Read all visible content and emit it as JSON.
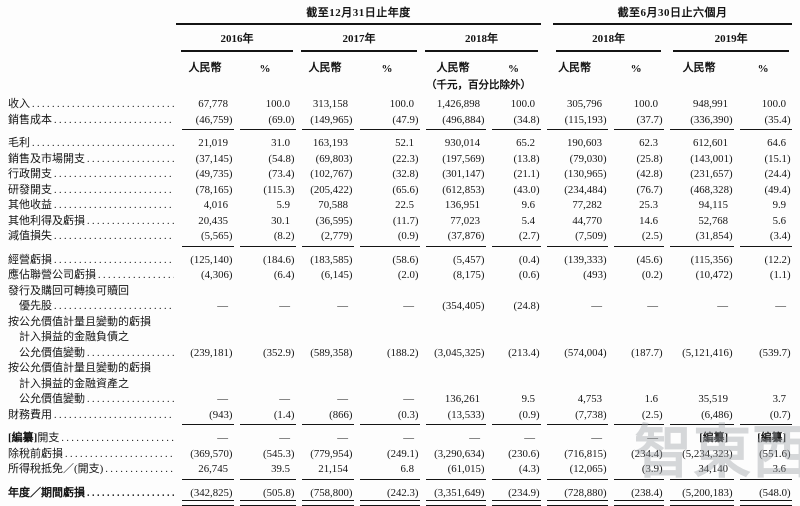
{
  "table": {
    "groups": [
      {
        "title": "截至12月31日止年度"
      },
      {
        "title": "截至6月30日止六個月"
      }
    ],
    "year_headers": [
      "2016年",
      "2017年",
      "2018年",
      "2018年",
      "2019年"
    ],
    "currency_header": "人民幣",
    "percent_header": "%",
    "unit_note": "（千元，百分比除外）",
    "rows": [
      {
        "label_lines": [
          "收入"
        ],
        "cells": [
          "67,778",
          "100.0",
          "313,158",
          "100.0",
          "1,426,898",
          "100.0",
          "305,796",
          "100.0",
          "948,991",
          "100.0"
        ],
        "underline": null,
        "space_before": false,
        "bold": false
      },
      {
        "label_lines": [
          "銷售成本"
        ],
        "cells": [
          "(46,759)",
          "(69.0)",
          "(149,965)",
          "(47.9)",
          "(496,884)",
          "(34.8)",
          "(115,193)",
          "(37.7)",
          "(336,390)",
          "(35.4)"
        ],
        "underline": "single",
        "space_before": false,
        "bold": false
      },
      {
        "label_lines": [
          "毛利"
        ],
        "cells": [
          "21,019",
          "31.0",
          "163,193",
          "52.1",
          "930,014",
          "65.2",
          "190,603",
          "62.3",
          "612,601",
          "64.6"
        ],
        "underline": null,
        "space_before": true,
        "bold": false
      },
      {
        "label_lines": [
          "銷售及市場開支"
        ],
        "cells": [
          "(37,145)",
          "(54.8)",
          "(69,803)",
          "(22.3)",
          "(197,569)",
          "(13.8)",
          "(79,030)",
          "(25.8)",
          "(143,001)",
          "(15.1)"
        ],
        "underline": null,
        "space_before": false,
        "bold": false
      },
      {
        "label_lines": [
          "行政開支"
        ],
        "cells": [
          "(49,735)",
          "(73.4)",
          "(102,767)",
          "(32.8)",
          "(301,147)",
          "(21.1)",
          "(130,965)",
          "(42.8)",
          "(231,657)",
          "(24.4)"
        ],
        "underline": null,
        "space_before": false,
        "bold": false
      },
      {
        "label_lines": [
          "研發開支"
        ],
        "cells": [
          "(78,165)",
          "(115.3)",
          "(205,422)",
          "(65.6)",
          "(612,853)",
          "(43.0)",
          "(234,484)",
          "(76.7)",
          "(468,328)",
          "(49.4)"
        ],
        "underline": null,
        "space_before": false,
        "bold": false
      },
      {
        "label_lines": [
          "其他收益"
        ],
        "cells": [
          "4,016",
          "5.9",
          "70,588",
          "22.5",
          "136,951",
          "9.6",
          "77,282",
          "25.3",
          "94,115",
          "9.9"
        ],
        "underline": null,
        "space_before": false,
        "bold": false
      },
      {
        "label_lines": [
          "其他利得及虧損"
        ],
        "cells": [
          "20,435",
          "30.1",
          "(36,595)",
          "(11.7)",
          "77,023",
          "5.4",
          "44,770",
          "14.6",
          "52,768",
          "5.6"
        ],
        "underline": null,
        "space_before": false,
        "bold": false
      },
      {
        "label_lines": [
          "減值損失"
        ],
        "cells": [
          "(5,565)",
          "(8.2)",
          "(2,779)",
          "(0.9)",
          "(37,876)",
          "(2.7)",
          "(7,509)",
          "(2.5)",
          "(31,854)",
          "(3.4)"
        ],
        "underline": "single",
        "space_before": false,
        "bold": false
      },
      {
        "label_lines": [
          "經營虧損"
        ],
        "cells": [
          "(125,140)",
          "(184.6)",
          "(183,585)",
          "(58.6)",
          "(5,457)",
          "(0.4)",
          "(139,333)",
          "(45.6)",
          "(115,356)",
          "(12.2)"
        ],
        "underline": null,
        "space_before": true,
        "bold": false
      },
      {
        "label_lines": [
          "應佔聯營公司虧損"
        ],
        "cells": [
          "(4,306)",
          "(6.4)",
          "(6,145)",
          "(2.0)",
          "(8,175)",
          "(0.6)",
          "(493)",
          "(0.2)",
          "(10,472)",
          "(1.1)"
        ],
        "underline": null,
        "space_before": false,
        "bold": false
      },
      {
        "label_lines": [
          "發行及購回可轉換可贖回",
          "優先股"
        ],
        "cells": [
          "—",
          "—",
          "—",
          "—",
          "(354,405)",
          "(24.8)",
          "—",
          "—",
          "—",
          "—"
        ],
        "underline": null,
        "space_before": false,
        "bold": false
      },
      {
        "label_lines": [
          "按公允價值計量且變動的虧損",
          "計入損益的金融負債之",
          "公允價值變動"
        ],
        "cells": [
          "(239,181)",
          "(352.9)",
          "(589,358)",
          "(188.2)",
          "(3,045,325)",
          "(213.4)",
          "(574,004)",
          "(187.7)",
          "(5,121,416)",
          "(539.7)"
        ],
        "underline": null,
        "space_before": false,
        "bold": false
      },
      {
        "label_lines": [
          "按公允價值計量且變動的虧損",
          "計入損益的金融資產之",
          "公允價值變動"
        ],
        "cells": [
          "—",
          "—",
          "—",
          "—",
          "136,261",
          "9.5",
          "4,753",
          "1.6",
          "35,519",
          "3.7"
        ],
        "underline": null,
        "space_before": false,
        "bold": false
      },
      {
        "label_lines": [
          "財務費用"
        ],
        "cells": [
          "(943)",
          "(1.4)",
          "(866)",
          "(0.3)",
          "(13,533)",
          "(0.9)",
          "(7,738)",
          "(2.5)",
          "(6,486)",
          "(0.7)"
        ],
        "underline": "single",
        "space_before": false,
        "bold": false
      },
      {
        "label_lines": [
          "[編纂]開支"
        ],
        "cells": [
          "—",
          "—",
          "—",
          "—",
          "—",
          "—",
          "—",
          "—",
          "[編纂]",
          "[編纂]"
        ],
        "underline": null,
        "space_before": true,
        "bold": false
      },
      {
        "label_lines": [
          "除稅前虧損"
        ],
        "cells": [
          "(369,570)",
          "(545.3)",
          "(779,954)",
          "(249.1)",
          "(3,290,634)",
          "(230.6)",
          "(716,815)",
          "(234.4)",
          "(5,234,323)",
          "(551.6)"
        ],
        "underline": null,
        "space_before": false,
        "bold": false
      },
      {
        "label_lines": [
          "所得稅抵免／(開支)"
        ],
        "cells": [
          "26,745",
          "39.5",
          "21,154",
          "6.8",
          "(61,015)",
          "(4.3)",
          "(12,065)",
          "(3.9)",
          "34,140",
          "3.6"
        ],
        "underline": "single",
        "space_before": false,
        "bold": false
      },
      {
        "label_lines": [
          "年度／期間虧損"
        ],
        "cells": [
          "(342,825)",
          "(505.8)",
          "(758,800)",
          "(242.3)",
          "(3,351,649)",
          "(234.9)",
          "(728,880)",
          "(238.4)",
          "(5,200,183)",
          "(548.0)"
        ],
        "underline": "double",
        "space_before": true,
        "bold": true
      }
    ]
  },
  "watermark": {
    "text": "智東西"
  }
}
